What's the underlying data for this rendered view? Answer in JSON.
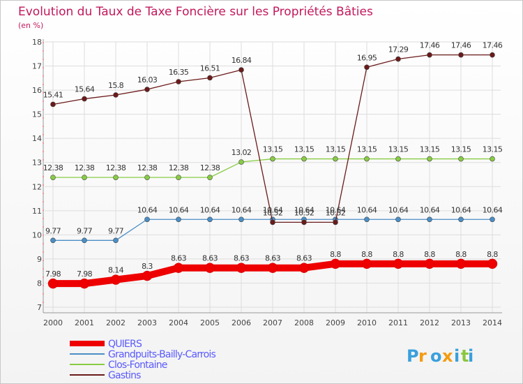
{
  "chart_data": {
    "type": "line",
    "title": "Evolution du Taux de Taxe Foncière sur les Propriétés Bâties",
    "subtitle": "(en %)",
    "xlabel": "",
    "ylabel": "",
    "ylim": [
      7,
      18
    ],
    "yticks": [
      "7",
      "8",
      "9",
      "10",
      "11",
      "12",
      "13",
      "14",
      "15",
      "16",
      "17",
      "18"
    ],
    "x": [
      "2000",
      "2001",
      "2002",
      "2003",
      "2004",
      "2005",
      "2006",
      "2007",
      "2008",
      "2009",
      "2010",
      "2011",
      "2012",
      "2013",
      "2014"
    ],
    "grid": true,
    "legend_position": "bottom-left",
    "series": [
      {
        "name": "QUIERS",
        "color": "#ee0000",
        "emphasis": true,
        "values": [
          7.98,
          7.98,
          8.14,
          8.3,
          8.63,
          8.63,
          8.63,
          8.63,
          8.63,
          8.8,
          8.8,
          8.8,
          8.8,
          8.8,
          8.8
        ],
        "labels": [
          "7.98",
          "7.98",
          "8.14",
          "8.3",
          "8.63",
          "8.63",
          "8.63",
          "8.63",
          "8.63",
          "8.8",
          "8.8",
          "8.8",
          "8.8",
          "8.8",
          "8.8"
        ]
      },
      {
        "name": "Grandpuits-Bailly-Carrois",
        "color": "#4a8ec6",
        "emphasis": false,
        "values": [
          9.77,
          9.77,
          9.77,
          10.64,
          10.64,
          10.64,
          10.64,
          10.64,
          10.64,
          10.64,
          10.64,
          10.64,
          10.64,
          10.64,
          10.64
        ],
        "labels": [
          "9.77",
          "9.77",
          "9.77",
          "10.64",
          "10.64",
          "10.64",
          "10.64",
          "10.64",
          "10.64",
          "10.64",
          "10.64",
          "10.64",
          "10.64",
          "10.64",
          "10.64"
        ]
      },
      {
        "name": "Clos-Fontaine",
        "color": "#88cc44",
        "emphasis": false,
        "values": [
          12.38,
          12.38,
          12.38,
          12.38,
          12.38,
          12.38,
          13.02,
          13.15,
          13.15,
          13.15,
          13.15,
          13.15,
          13.15,
          13.15,
          13.15
        ],
        "labels": [
          "12.38",
          "12.38",
          "12.38",
          "12.38",
          "12.38",
          "12.38",
          "13.02",
          "13.15",
          "13.15",
          "13.15",
          "13.15",
          "13.15",
          "13.15",
          "13.15",
          "13.15"
        ]
      },
      {
        "name": "Gastins",
        "color": "#6b1a1a",
        "emphasis": false,
        "values": [
          15.41,
          15.64,
          15.8,
          16.03,
          16.35,
          16.51,
          16.84,
          10.52,
          10.52,
          10.52,
          16.95,
          17.29,
          17.46,
          17.46,
          17.46
        ],
        "labels": [
          "15.41",
          "15.64",
          "15.8",
          "16.03",
          "16.35",
          "16.51",
          "16.84",
          "10.52",
          "10.52",
          "10.52",
          "16.95",
          "17.29",
          "17.46",
          "17.46",
          "17.46"
        ]
      }
    ]
  },
  "brand": {
    "letters": [
      "P",
      "r",
      "o",
      "x",
      "i",
      "t",
      "i"
    ],
    "colors": [
      "#3aa0dc",
      "#f39c12",
      "#3aa0dc",
      "#f39c12",
      "#3aa0dc",
      "#8cc63f",
      "#3aa0dc"
    ]
  },
  "colors": {
    "title": "#c2185b",
    "axis_text": "#444444",
    "legend_text": "#5a5aff",
    "grid": "#dddddd"
  }
}
